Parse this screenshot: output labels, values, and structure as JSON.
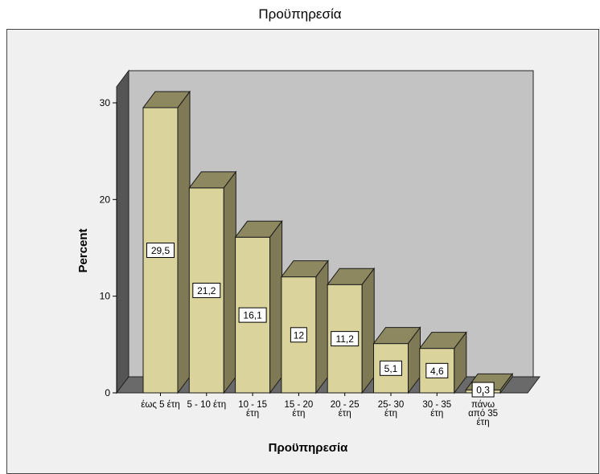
{
  "chart_data": {
    "type": "bar",
    "title": "Προϋπηρεσία",
    "xlabel": "Προϋπηρεσία",
    "ylabel": "Percent",
    "ylim": [
      0,
      30
    ],
    "yticks": [
      "0",
      "10",
      "20",
      "30"
    ],
    "categories": [
      [
        "έως 5 έτη"
      ],
      [
        "5 - 10 έτη"
      ],
      [
        "10 - 15",
        "έτη"
      ],
      [
        "15 - 20",
        "έτη"
      ],
      [
        "20 - 25",
        "έτη"
      ],
      [
        "25- 30",
        "έτη"
      ],
      [
        "30 - 35",
        "έτη"
      ],
      [
        "πάνω",
        "από 35",
        "έτη"
      ]
    ],
    "values": [
      29.5,
      21.2,
      16.1,
      12,
      11.2,
      5.1,
      4.6,
      0.3
    ],
    "data_labels": [
      "29,5",
      "21,2",
      "16,1",
      "12",
      "11,2",
      "5,1",
      "4,6",
      "0,3"
    ],
    "grid": false,
    "legend": "none",
    "three_d": true,
    "colors": {
      "bar_front": "#dad49c",
      "bar_side": "#7f7a55",
      "bar_top": "#8e8860",
      "bar_edge": "#1a1a1a",
      "back_wall": "#c3c3c3",
      "side_wall": "#555555",
      "floor": "#6a6a6a",
      "frame_bg": "#f0f0f0"
    }
  }
}
